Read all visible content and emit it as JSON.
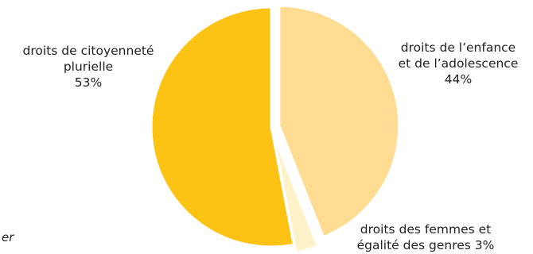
{
  "chart_data": {
    "type": "pie",
    "title": "",
    "slices": [
      {
        "label_lines": [
          "droits de l’enfance",
          "et de l’adolescence",
          "44%"
        ],
        "value": 44,
        "color": "#fedd92",
        "exploded": true
      },
      {
        "label_lines": [
          "droits des femmes et",
          "égalité des genres 3%"
        ],
        "value": 3,
        "color": "#fff1c8",
        "exploded": true
      },
      {
        "label_lines": [
          "droits de citoyenneté",
          "plurielle",
          "53%"
        ],
        "value": 53,
        "color": "#fcc314",
        "exploded": false
      }
    ],
    "start_angle_deg": 0,
    "direction": "clockwise",
    "legend": "none",
    "separator_color": "#ffffff"
  },
  "fragment": {
    "text": "er"
  }
}
